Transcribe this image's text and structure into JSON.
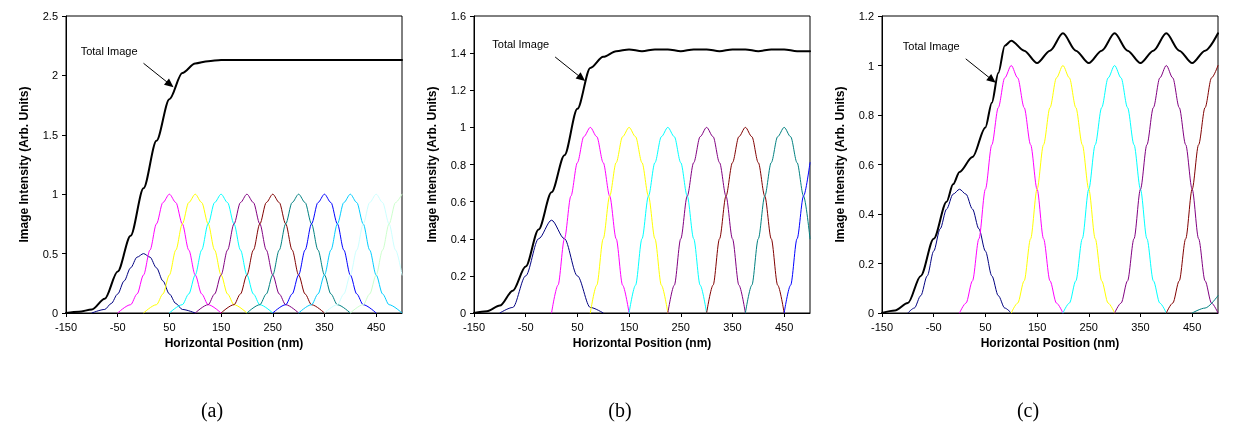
{
  "chart_data": [
    {
      "type": "line",
      "title": "(a)",
      "xlabel": "Horizontal Position (nm)",
      "ylabel": "Image Intensity (Arb. Units)",
      "xlim": [
        -150,
        500
      ],
      "ylim": [
        0,
        2.5
      ],
      "xticks": [
        -150,
        -50,
        50,
        150,
        250,
        350,
        450
      ],
      "yticks": [
        0,
        0.5,
        1,
        1.5,
        2,
        2.5
      ],
      "marker": "none",
      "line_style": "solid",
      "annotations": [
        {
          "text": "Total Image",
          "x": 58,
          "y": 1.9
        }
      ],
      "series": [
        {
          "color": "#000000",
          "x": [
            -150,
            -125,
            -100,
            -75,
            -50,
            -25,
            0,
            25,
            50,
            75,
            100,
            125,
            150,
            500
          ],
          "values": [
            0,
            0.01,
            0.03,
            0.12,
            0.35,
            0.65,
            1.05,
            1.45,
            1.8,
            2.02,
            2.1,
            2.12,
            2.13,
            2.13
          ]
        },
        {
          "color": "#000080",
          "x": [
            -100,
            -75,
            -62.5,
            -50,
            -37.5,
            -25,
            -12.5,
            0,
            12.5,
            25,
            37.5,
            50,
            62.5,
            75,
            100
          ],
          "values": [
            0,
            0.03,
            0.08,
            0.16,
            0.27,
            0.38,
            0.47,
            0.5,
            0.47,
            0.38,
            0.27,
            0.16,
            0.08,
            0.03,
            0
          ]
        },
        {
          "color": "#ff00ff",
          "x": [
            -50,
            -25,
            -12.5,
            0,
            12.5,
            25,
            37.5,
            50,
            62.5,
            75,
            87.5,
            100,
            112.5,
            125,
            150
          ],
          "values": [
            0,
            0.07,
            0.16,
            0.32,
            0.53,
            0.75,
            0.93,
            1,
            0.93,
            0.75,
            0.53,
            0.32,
            0.16,
            0.07,
            0
          ]
        },
        {
          "color": "#ffff00",
          "x": [
            0,
            25,
            37.5,
            50,
            62.5,
            75,
            87.5,
            100,
            112.5,
            125,
            137.5,
            150,
            162.5,
            175,
            200
          ],
          "values": [
            0,
            0.07,
            0.16,
            0.32,
            0.53,
            0.75,
            0.93,
            1,
            0.93,
            0.75,
            0.53,
            0.32,
            0.16,
            0.07,
            0
          ]
        },
        {
          "color": "#00ffff",
          "x": [
            50,
            75,
            87.5,
            100,
            112.5,
            125,
            137.5,
            150,
            162.5,
            175,
            187.5,
            200,
            212.5,
            225,
            250
          ],
          "values": [
            0,
            0.07,
            0.16,
            0.32,
            0.53,
            0.75,
            0.93,
            1,
            0.93,
            0.75,
            0.53,
            0.32,
            0.16,
            0.07,
            0
          ]
        },
        {
          "color": "#800080",
          "x": [
            100,
            125,
            137.5,
            150,
            162.5,
            175,
            187.5,
            200,
            212.5,
            225,
            237.5,
            250,
            262.5,
            275,
            300
          ],
          "values": [
            0,
            0.07,
            0.16,
            0.32,
            0.53,
            0.75,
            0.93,
            1,
            0.93,
            0.75,
            0.53,
            0.32,
            0.16,
            0.07,
            0
          ]
        },
        {
          "color": "#800000",
          "x": [
            150,
            175,
            187.5,
            200,
            212.5,
            225,
            237.5,
            250,
            262.5,
            275,
            287.5,
            300,
            312.5,
            325,
            350
          ],
          "values": [
            0,
            0.07,
            0.16,
            0.32,
            0.53,
            0.75,
            0.93,
            1,
            0.93,
            0.75,
            0.53,
            0.32,
            0.16,
            0.07,
            0
          ]
        },
        {
          "color": "#008080",
          "x": [
            200,
            225,
            237.5,
            250,
            262.5,
            275,
            287.5,
            300,
            312.5,
            325,
            337.5,
            350,
            362.5,
            375,
            400
          ],
          "values": [
            0,
            0.07,
            0.16,
            0.32,
            0.53,
            0.75,
            0.93,
            1,
            0.93,
            0.75,
            0.53,
            0.32,
            0.16,
            0.07,
            0
          ]
        },
        {
          "color": "#0000ff",
          "x": [
            250,
            275,
            287.5,
            300,
            312.5,
            325,
            337.5,
            350,
            362.5,
            375,
            387.5,
            400,
            412.5,
            425,
            450
          ],
          "values": [
            0,
            0.07,
            0.16,
            0.32,
            0.53,
            0.75,
            0.93,
            1,
            0.93,
            0.75,
            0.53,
            0.32,
            0.16,
            0.07,
            0
          ]
        },
        {
          "color": "#00ccff",
          "x": [
            300,
            325,
            337.5,
            350,
            362.5,
            375,
            387.5,
            400,
            412.5,
            425,
            437.5,
            450,
            462.5,
            475,
            500
          ],
          "values": [
            0,
            0.07,
            0.16,
            0.32,
            0.53,
            0.75,
            0.93,
            1,
            0.93,
            0.75,
            0.53,
            0.32,
            0.16,
            0.07,
            0
          ]
        },
        {
          "color": "#ccffff",
          "x": [
            350,
            375,
            387.5,
            400,
            412.5,
            425,
            437.5,
            450,
            462.5,
            475,
            487.5,
            500
          ],
          "values": [
            0,
            0.07,
            0.16,
            0.32,
            0.53,
            0.75,
            0.93,
            1,
            0.93,
            0.75,
            0.53,
            0.32
          ]
        },
        {
          "color": "#ccffcc",
          "x": [
            400,
            425,
            437.5,
            450,
            462.5,
            475,
            487.5,
            500
          ],
          "values": [
            0,
            0.07,
            0.16,
            0.32,
            0.53,
            0.75,
            0.93,
            1
          ]
        }
      ]
    },
    {
      "type": "line",
      "title": "(b)",
      "xlabel": "Horizontal Position (nm)",
      "ylabel": "Image Intensity (Arb. Units)",
      "xlim": [
        -150,
        500
      ],
      "ylim": [
        0,
        1.6
      ],
      "xticks": [
        -150,
        -50,
        50,
        150,
        250,
        350,
        450
      ],
      "yticks": [
        0,
        0.2,
        0.4,
        0.6,
        0.8,
        1,
        1.2,
        1.4,
        1.6
      ],
      "marker": "none",
      "line_style": "solid",
      "annotations": [
        {
          "text": "Total Image",
          "x": 65,
          "y": 1.25
        }
      ],
      "series": [
        {
          "color": "#000000",
          "x": [
            -150,
            -125,
            -100,
            -75,
            -50,
            -25,
            0,
            25,
            50,
            75,
            100,
            125,
            150,
            175,
            200,
            225,
            250,
            275,
            300,
            325,
            350,
            375,
            400,
            425,
            450,
            475,
            500
          ],
          "values": [
            0,
            0.01,
            0.04,
            0.12,
            0.25,
            0.45,
            0.65,
            0.85,
            1.1,
            1.32,
            1.38,
            1.41,
            1.42,
            1.41,
            1.42,
            1.42,
            1.41,
            1.42,
            1.42,
            1.41,
            1.42,
            1.42,
            1.41,
            1.42,
            1.42,
            1.41,
            1.41
          ]
        },
        {
          "color": "#000080",
          "x": [
            -100,
            -75,
            -50,
            -25,
            0,
            25,
            50,
            75,
            100
          ],
          "values": [
            0,
            0.03,
            0.2,
            0.4,
            0.5,
            0.4,
            0.2,
            0.03,
            0
          ]
        },
        {
          "color": "#ff00ff",
          "x": [
            0,
            12.5,
            25,
            37.5,
            50,
            62.5,
            75,
            87.5,
            100,
            112.5,
            125,
            137.5,
            150
          ],
          "values": [
            0,
            0.15,
            0.4,
            0.63,
            0.81,
            0.95,
            1,
            0.95,
            0.81,
            0.63,
            0.4,
            0.15,
            0
          ]
        },
        {
          "color": "#ffff00",
          "x": [
            75,
            87.5,
            100,
            112.5,
            125,
            137.5,
            150,
            162.5,
            175,
            187.5,
            200,
            212.5,
            225
          ],
          "values": [
            0,
            0.15,
            0.4,
            0.63,
            0.81,
            0.95,
            1,
            0.95,
            0.81,
            0.63,
            0.4,
            0.15,
            0
          ]
        },
        {
          "color": "#00ffff",
          "x": [
            150,
            162.5,
            175,
            187.5,
            200,
            212.5,
            225,
            237.5,
            250,
            262.5,
            275,
            287.5,
            300
          ],
          "values": [
            0,
            0.15,
            0.4,
            0.63,
            0.81,
            0.95,
            1,
            0.95,
            0.81,
            0.63,
            0.4,
            0.15,
            0
          ]
        },
        {
          "color": "#800080",
          "x": [
            225,
            237.5,
            250,
            262.5,
            275,
            287.5,
            300,
            312.5,
            325,
            337.5,
            350,
            362.5,
            375
          ],
          "values": [
            0,
            0.15,
            0.4,
            0.63,
            0.81,
            0.95,
            1,
            0.95,
            0.81,
            0.63,
            0.4,
            0.15,
            0
          ]
        },
        {
          "color": "#800000",
          "x": [
            300,
            312.5,
            325,
            337.5,
            350,
            362.5,
            375,
            387.5,
            400,
            412.5,
            425,
            437.5,
            450
          ],
          "values": [
            0,
            0.15,
            0.4,
            0.63,
            0.81,
            0.95,
            1,
            0.95,
            0.81,
            0.63,
            0.4,
            0.15,
            0
          ]
        },
        {
          "color": "#008080",
          "x": [
            375,
            387.5,
            400,
            412.5,
            425,
            437.5,
            450,
            462.5,
            475,
            487.5,
            500
          ],
          "values": [
            0,
            0.15,
            0.4,
            0.63,
            0.81,
            0.95,
            1,
            0.95,
            0.81,
            0.63,
            0.4
          ]
        },
        {
          "color": "#0000ff",
          "x": [
            450,
            462.5,
            475,
            487.5,
            500
          ],
          "values": [
            0,
            0.15,
            0.4,
            0.63,
            0.81
          ]
        }
      ]
    },
    {
      "type": "line",
      "title": "(c)",
      "xlabel": "Horizontal Position (nm)",
      "ylabel": "Image Intensity (Arb. Units)",
      "xlim": [
        -150,
        500
      ],
      "ylim": [
        0,
        1.2
      ],
      "xticks": [
        -150,
        -50,
        50,
        150,
        250,
        350,
        450
      ],
      "yticks": [
        0,
        0.2,
        0.4,
        0.6,
        0.8,
        1,
        1.2
      ],
      "marker": "none",
      "line_style": "solid",
      "annotations": [
        {
          "text": "Total Image",
          "x": 70,
          "y": 0.93
        }
      ],
      "series": [
        {
          "color": "#000000",
          "x": [
            -150,
            -125,
            -100,
            -75,
            -50,
            -25,
            -12.5,
            0,
            25,
            50,
            62.5,
            75,
            87.5,
            100,
            125,
            150,
            175,
            200,
            225,
            250,
            275,
            300,
            325,
            350,
            375,
            400,
            425,
            450,
            475,
            500
          ],
          "values": [
            0,
            0.01,
            0.04,
            0.15,
            0.3,
            0.45,
            0.52,
            0.57,
            0.63,
            0.75,
            0.85,
            0.97,
            1.08,
            1.1,
            1.06,
            1.01,
            1.06,
            1.13,
            1.06,
            1.01,
            1.06,
            1.13,
            1.06,
            1.01,
            1.06,
            1.13,
            1.06,
            1.01,
            1.06,
            1.13
          ]
        },
        {
          "color": "#000080",
          "x": [
            -100,
            -87.5,
            -75,
            -62.5,
            -50,
            -37.5,
            -25,
            -12.5,
            0,
            12.5,
            25,
            37.5,
            50,
            62.5,
            75,
            87.5,
            100
          ],
          "values": [
            0,
            0.02,
            0.07,
            0.15,
            0.25,
            0.34,
            0.42,
            0.48,
            0.5,
            0.48,
            0.42,
            0.34,
            0.25,
            0.15,
            0.07,
            0.02,
            0
          ]
        },
        {
          "color": "#ff00ff",
          "x": [
            0,
            12.5,
            25,
            37.5,
            50,
            62.5,
            75,
            87.5,
            100,
            112.5,
            125,
            137.5,
            150,
            162.5,
            175,
            187.5,
            200
          ],
          "values": [
            0,
            0.04,
            0.13,
            0.3,
            0.5,
            0.68,
            0.83,
            0.95,
            1,
            0.95,
            0.83,
            0.68,
            0.5,
            0.3,
            0.13,
            0.04,
            0
          ]
        },
        {
          "color": "#ffff00",
          "x": [
            100,
            112.5,
            125,
            137.5,
            150,
            162.5,
            175,
            187.5,
            200,
            212.5,
            225,
            237.5,
            250,
            262.5,
            275,
            287.5,
            300
          ],
          "values": [
            0,
            0.04,
            0.13,
            0.3,
            0.5,
            0.68,
            0.83,
            0.95,
            1,
            0.95,
            0.83,
            0.68,
            0.5,
            0.3,
            0.13,
            0.04,
            0
          ]
        },
        {
          "color": "#00ffff",
          "x": [
            200,
            212.5,
            225,
            237.5,
            250,
            262.5,
            275,
            287.5,
            300,
            312.5,
            325,
            337.5,
            350,
            362.5,
            375,
            387.5,
            400
          ],
          "values": [
            0,
            0.04,
            0.13,
            0.3,
            0.5,
            0.68,
            0.83,
            0.95,
            1,
            0.95,
            0.83,
            0.68,
            0.5,
            0.3,
            0.13,
            0.04,
            0
          ]
        },
        {
          "color": "#800080",
          "x": [
            300,
            312.5,
            325,
            337.5,
            350,
            362.5,
            375,
            387.5,
            400,
            412.5,
            425,
            437.5,
            450,
            462.5,
            475,
            487.5,
            500
          ],
          "values": [
            0,
            0.04,
            0.13,
            0.3,
            0.5,
            0.68,
            0.83,
            0.95,
            1,
            0.95,
            0.83,
            0.68,
            0.5,
            0.3,
            0.13,
            0.04,
            0
          ]
        },
        {
          "color": "#800000",
          "x": [
            400,
            412.5,
            425,
            437.5,
            450,
            462.5,
            475,
            487.5,
            500
          ],
          "values": [
            0,
            0.04,
            0.13,
            0.3,
            0.5,
            0.68,
            0.83,
            0.95,
            1
          ]
        },
        {
          "color": "#008080",
          "x": [
            450,
            475,
            500
          ],
          "values": [
            0,
            0.02,
            0.07
          ]
        }
      ]
    }
  ]
}
